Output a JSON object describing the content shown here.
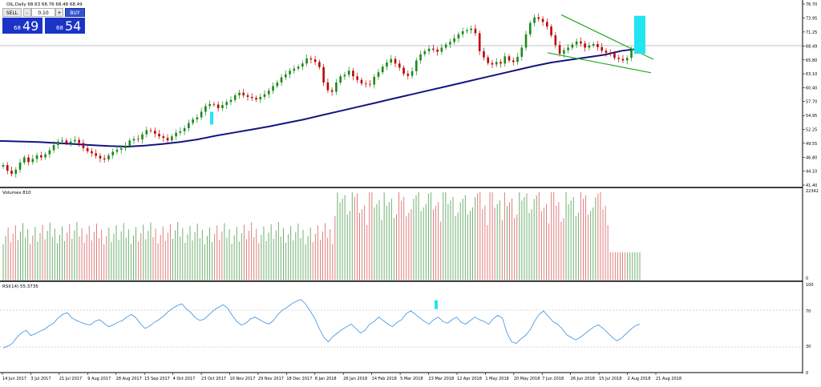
{
  "header": {
    "symbol_line": "OIL,Daily  68.63 68.76 68.48 68.49"
  },
  "trade_panel": {
    "sell_label": "SELL",
    "buy_label": "BUY",
    "lot_value": "0.10",
    "minus_label": "-",
    "plus_label": "+",
    "sell_small": "68",
    "sell_big": "49",
    "buy_small": "68",
    "buy_big": "54"
  },
  "colors": {
    "up_candle": "#1a8a1a",
    "down_candle": "#c00000",
    "ma_line": "#141483",
    "trendline": "#22aa22",
    "highlight": "#22e5f2",
    "rsi_line": "#3a8ee0",
    "volume_up": "#70b070",
    "volume_down": "#e07e7e",
    "grid_separator": "#000000"
  },
  "chart_data": [
    {
      "type": "candlestick",
      "name": "price",
      "title": "OIL,Daily  68.63 68.76 68.48 68.49",
      "x_ticks": [
        "14 Jun 2017",
        "3 Jul 2017",
        "21 Jul 2017",
        "9 Aug 2017",
        "28 Aug 2017",
        "15 Sep 2017",
        "4 Oct 2017",
        "23 Oct 2017",
        "10 Nov 2017",
        "29 Nov 2017",
        "18 Dec 2017",
        "8 Jan 2018",
        "26 Jan 2018",
        "14 Feb 2018",
        "5 Mar 2018",
        "23 Mar 2018",
        "12 Apr 2018",
        "1 May 2018",
        "20 May 2018",
        "7 Jun 2018",
        "26 Jun 2018",
        "15 Jul 2018",
        "2 Aug 2018",
        "21 Aug 2018"
      ],
      "y_ticks": [
        "76.70",
        "73.95",
        "71.25",
        "68.49",
        "65.80",
        "63.10",
        "60.40",
        "57.70",
        "54.95",
        "52.25",
        "49.55",
        "46.80",
        "44.10",
        "41.40"
      ],
      "ylim": [
        41.4,
        76.7
      ],
      "current_price": "68.49",
      "closes": [
        45.3,
        44.2,
        43.6,
        44.4,
        45.8,
        46.8,
        45.9,
        46.5,
        47.2,
        46.8,
        47.4,
        48.2,
        49.2,
        49.9,
        50.1,
        49.6,
        49.9,
        50.2,
        49.6,
        48.6,
        48.0,
        47.6,
        47.1,
        46.6,
        46.4,
        47.2,
        47.9,
        48.3,
        48.6,
        49.1,
        50.1,
        50.4,
        50.3,
        51.3,
        52.1,
        52.0,
        51.4,
        50.9,
        50.6,
        50.1,
        50.9,
        51.6,
        51.9,
        52.5,
        53.5,
        54.2,
        54.6,
        55.7,
        56.8,
        57.2,
        57.1,
        56.4,
        57.0,
        57.6,
        58.0,
        58.9,
        59.4,
        58.9,
        58.6,
        58.4,
        58.1,
        58.6,
        59.1,
        59.8,
        60.7,
        61.4,
        62.4,
        63.0,
        63.7,
        64.1,
        64.5,
        65.1,
        66.1,
        65.9,
        65.4,
        64.4,
        61.4,
        59.9,
        59.6,
        61.4,
        62.6,
        62.9,
        63.7,
        62.6,
        61.9,
        61.2,
        61.1,
        61.0,
        62.5,
        63.4,
        64.5,
        65.3,
        66.0,
        65.1,
        64.3,
        63.1,
        62.7,
        63.6,
        65.7,
        66.9,
        67.5,
        68.0,
        67.8,
        67.4,
        68.2,
        68.8,
        69.3,
        70.0,
        70.8,
        71.4,
        71.6,
        71.9,
        71.0,
        67.5,
        66.3,
        65.2,
        64.9,
        65.4,
        65.1,
        66.5,
        65.7,
        65.4,
        66.4,
        68.2,
        70.8,
        73.0,
        74.1,
        73.8,
        73.2,
        72.3,
        70.6,
        68.7,
        67.0,
        67.7,
        68.2,
        68.8,
        69.4,
        69.0,
        68.2,
        68.6,
        68.9,
        68.3,
        67.6,
        67.2,
        67.1,
        66.2,
        66.0,
        65.7,
        66.2,
        67.7,
        68.5,
        68.9
      ],
      "highlight_boxes_price": [
        {
          "date_index_approx": 45,
          "y_range": [
            53.2,
            55.7
          ]
        },
        {
          "date_index_approx": 150,
          "y_range": [
            67.0,
            74.4
          ]
        }
      ]
    },
    {
      "type": "line",
      "name": "moving_average",
      "values": [
        50.0,
        49.9,
        49.8,
        49.6,
        49.4,
        49.2,
        49.0,
        48.9,
        49.1,
        49.4,
        49.8,
        50.3,
        51.0,
        51.6,
        52.2,
        52.8,
        53.5,
        54.2,
        55.0,
        55.8,
        56.6,
        57.4,
        58.2,
        59.0,
        59.8,
        60.6,
        61.4,
        62.2,
        63.0,
        63.8,
        64.6,
        65.3,
        65.8,
        66.3,
        66.8,
        67.6,
        68.0
      ]
    },
    {
      "type": "line",
      "name": "trendlines",
      "series": [
        {
          "values": [
            74.6,
            65.9
          ]
        },
        {
          "values": [
            67.2,
            63.3
          ]
        }
      ]
    },
    {
      "type": "bar",
      "name": "volume",
      "title": "Volumes 810",
      "y_ticks": [
        "22342",
        "0"
      ],
      "ylim": [
        0,
        22342
      ]
    },
    {
      "type": "line",
      "name": "rsi",
      "title": "RSI(14) 55.3735",
      "y_ticks": [
        "100",
        "70",
        "30",
        "0"
      ],
      "ylim": [
        0,
        100
      ],
      "levels": [
        70,
        30
      ],
      "values": [
        28,
        30,
        33,
        40,
        45,
        48,
        42,
        44,
        47,
        49,
        53,
        56,
        62,
        66,
        68,
        62,
        59,
        57,
        55,
        54,
        58,
        60,
        56,
        52,
        54,
        57,
        59,
        63,
        66,
        62,
        55,
        50,
        53,
        57,
        60,
        64,
        69,
        73,
        76,
        78,
        72,
        68,
        62,
        59,
        61,
        66,
        71,
        74,
        77,
        73,
        65,
        58,
        54,
        56,
        61,
        63,
        60,
        57,
        55,
        59,
        66,
        71,
        74,
        78,
        81,
        83,
        78,
        70,
        62,
        50,
        40,
        35,
        41,
        45,
        49,
        52,
        55,
        50,
        45,
        48,
        55,
        58,
        63,
        59,
        55,
        52,
        57,
        60,
        67,
        70,
        66,
        62,
        58,
        55,
        60,
        63,
        58,
        56,
        60,
        63,
        57,
        55,
        59,
        63,
        60,
        58,
        55,
        61,
        65,
        62,
        45,
        35,
        33,
        38,
        42,
        48,
        58,
        66,
        70,
        64,
        58,
        55,
        50,
        43,
        40,
        37,
        40,
        44,
        48,
        52,
        54,
        50,
        45,
        40,
        36,
        39,
        44,
        49,
        53,
        55
      ],
      "highlight_value_range": [
        72,
        82
      ]
    }
  ]
}
